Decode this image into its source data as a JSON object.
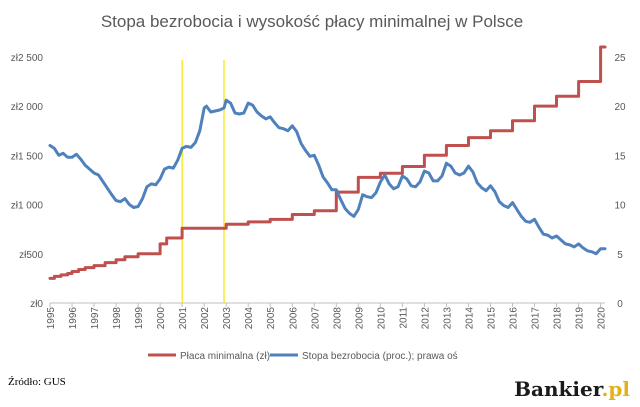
{
  "chart_data": {
    "type": "line",
    "title": "Stopa bezrobocia i wysokość płacy minimalnej w Polsce",
    "xlabel": "",
    "ylabel": "",
    "y2label": "",
    "x_ticks": [
      "1995",
      "1996",
      "1997",
      "1998",
      "1999",
      "2000",
      "2001",
      "2002",
      "2003",
      "2004",
      "2005",
      "2006",
      "2007",
      "2008",
      "2009",
      "2010",
      "2011",
      "2012",
      "2013",
      "2014",
      "2015",
      "2016",
      "2017",
      "2018",
      "2019",
      "2020"
    ],
    "y_left_ticks": [
      "zł0",
      "zł500",
      "zł1 000",
      "zł1 500",
      "zł2 000",
      "zł2 500"
    ],
    "y_right_ticks": [
      "0",
      "5",
      "10",
      "15",
      "20",
      "25"
    ],
    "ylim_left": [
      0,
      2600
    ],
    "ylim_right": [
      0,
      26
    ],
    "xlim": [
      1995,
      2020.2
    ],
    "grid": false,
    "legend_position": "bottom",
    "vertical_markers": [
      2001.0,
      2002.9
    ],
    "series": [
      {
        "name": "Płaca minimalna (zł)",
        "axis": "left",
        "color": "#c0504d",
        "step": true,
        "points": [
          [
            1995.0,
            250
          ],
          [
            1995.2,
            270
          ],
          [
            1995.5,
            285
          ],
          [
            1995.8,
            300
          ],
          [
            1996.0,
            320
          ],
          [
            1996.3,
            340
          ],
          [
            1996.6,
            360
          ],
          [
            1997.0,
            380
          ],
          [
            1997.5,
            410
          ],
          [
            1998.0,
            440
          ],
          [
            1998.4,
            470
          ],
          [
            1999.0,
            500
          ],
          [
            2000.0,
            600
          ],
          [
            2000.3,
            660
          ],
          [
            2001.0,
            760
          ],
          [
            2003.0,
            800
          ],
          [
            2004.0,
            824
          ],
          [
            2005.0,
            849
          ],
          [
            2006.0,
            899
          ],
          [
            2007.0,
            936
          ],
          [
            2008.0,
            1126
          ],
          [
            2009.0,
            1276
          ],
          [
            2010.0,
            1317
          ],
          [
            2011.0,
            1386
          ],
          [
            2012.0,
            1500
          ],
          [
            2013.0,
            1600
          ],
          [
            2014.0,
            1680
          ],
          [
            2015.0,
            1750
          ],
          [
            2016.0,
            1850
          ],
          [
            2017.0,
            2000
          ],
          [
            2018.0,
            2100
          ],
          [
            2019.0,
            2250
          ],
          [
            2019.95,
            2250
          ],
          [
            2020.0,
            2600
          ],
          [
            2020.2,
            2600
          ]
        ]
      },
      {
        "name": "Stopa bezrobocia (proc.); prawa oś",
        "axis": "right",
        "color": "#4f81bd",
        "step": false,
        "points": [
          [
            1995.0,
            16.0
          ],
          [
            1995.2,
            15.7
          ],
          [
            1995.4,
            15.0
          ],
          [
            1995.6,
            15.2
          ],
          [
            1995.8,
            14.8
          ],
          [
            1996.0,
            14.8
          ],
          [
            1996.2,
            15.1
          ],
          [
            1996.4,
            14.6
          ],
          [
            1996.6,
            14.0
          ],
          [
            1996.8,
            13.6
          ],
          [
            1997.0,
            13.2
          ],
          [
            1997.2,
            13.0
          ],
          [
            1997.5,
            12.0
          ],
          [
            1997.8,
            11.0
          ],
          [
            1998.0,
            10.4
          ],
          [
            1998.2,
            10.3
          ],
          [
            1998.4,
            10.6
          ],
          [
            1998.6,
            10.0
          ],
          [
            1998.8,
            9.7
          ],
          [
            1999.0,
            9.8
          ],
          [
            1999.2,
            10.6
          ],
          [
            1999.4,
            11.8
          ],
          [
            1999.6,
            12.1
          ],
          [
            1999.8,
            12.0
          ],
          [
            2000.0,
            12.6
          ],
          [
            2000.2,
            13.6
          ],
          [
            2000.4,
            13.8
          ],
          [
            2000.6,
            13.7
          ],
          [
            2000.8,
            14.5
          ],
          [
            2001.0,
            15.7
          ],
          [
            2001.2,
            15.9
          ],
          [
            2001.4,
            15.8
          ],
          [
            2001.6,
            16.3
          ],
          [
            2001.8,
            17.5
          ],
          [
            2002.0,
            19.8
          ],
          [
            2002.1,
            20.0
          ],
          [
            2002.3,
            19.4
          ],
          [
            2002.5,
            19.5
          ],
          [
            2002.7,
            19.6
          ],
          [
            2002.9,
            19.8
          ],
          [
            2003.0,
            20.6
          ],
          [
            2003.2,
            20.3
          ],
          [
            2003.4,
            19.3
          ],
          [
            2003.6,
            19.2
          ],
          [
            2003.8,
            19.3
          ],
          [
            2004.0,
            20.3
          ],
          [
            2004.2,
            20.1
          ],
          [
            2004.4,
            19.4
          ],
          [
            2004.6,
            19.0
          ],
          [
            2004.8,
            18.7
          ],
          [
            2005.0,
            18.9
          ],
          [
            2005.2,
            18.3
          ],
          [
            2005.4,
            17.8
          ],
          [
            2005.6,
            17.7
          ],
          [
            2005.8,
            17.5
          ],
          [
            2006.0,
            18.0
          ],
          [
            2006.2,
            17.4
          ],
          [
            2006.4,
            16.2
          ],
          [
            2006.6,
            15.5
          ],
          [
            2006.8,
            14.9
          ],
          [
            2007.0,
            15.0
          ],
          [
            2007.2,
            14.0
          ],
          [
            2007.4,
            12.8
          ],
          [
            2007.6,
            12.2
          ],
          [
            2007.8,
            11.5
          ],
          [
            2008.0,
            11.5
          ],
          [
            2008.2,
            10.5
          ],
          [
            2008.4,
            9.6
          ],
          [
            2008.6,
            9.1
          ],
          [
            2008.8,
            8.8
          ],
          [
            2009.0,
            9.5
          ],
          [
            2009.2,
            11.0
          ],
          [
            2009.4,
            10.8
          ],
          [
            2009.6,
            10.7
          ],
          [
            2009.8,
            11.2
          ],
          [
            2010.0,
            12.3
          ],
          [
            2010.2,
            13.0
          ],
          [
            2010.4,
            12.1
          ],
          [
            2010.6,
            11.6
          ],
          [
            2010.8,
            11.8
          ],
          [
            2011.0,
            12.9
          ],
          [
            2011.2,
            12.6
          ],
          [
            2011.4,
            11.9
          ],
          [
            2011.6,
            11.8
          ],
          [
            2011.8,
            12.3
          ],
          [
            2012.0,
            13.4
          ],
          [
            2012.2,
            13.2
          ],
          [
            2012.4,
            12.4
          ],
          [
            2012.6,
            12.4
          ],
          [
            2012.8,
            12.9
          ],
          [
            2013.0,
            14.2
          ],
          [
            2013.2,
            13.9
          ],
          [
            2013.4,
            13.2
          ],
          [
            2013.6,
            13.0
          ],
          [
            2013.8,
            13.2
          ],
          [
            2014.0,
            13.9
          ],
          [
            2014.2,
            13.3
          ],
          [
            2014.4,
            12.2
          ],
          [
            2014.6,
            11.7
          ],
          [
            2014.8,
            11.4
          ],
          [
            2015.0,
            11.9
          ],
          [
            2015.2,
            11.3
          ],
          [
            2015.4,
            10.3
          ],
          [
            2015.6,
            9.9
          ],
          [
            2015.8,
            9.7
          ],
          [
            2016.0,
            10.2
          ],
          [
            2016.2,
            9.5
          ],
          [
            2016.4,
            8.8
          ],
          [
            2016.6,
            8.3
          ],
          [
            2016.8,
            8.2
          ],
          [
            2017.0,
            8.5
          ],
          [
            2017.2,
            7.7
          ],
          [
            2017.4,
            7.0
          ],
          [
            2017.6,
            6.9
          ],
          [
            2017.8,
            6.6
          ],
          [
            2018.0,
            6.8
          ],
          [
            2018.2,
            6.4
          ],
          [
            2018.4,
            6.0
          ],
          [
            2018.6,
            5.9
          ],
          [
            2018.8,
            5.7
          ],
          [
            2019.0,
            6.0
          ],
          [
            2019.2,
            5.6
          ],
          [
            2019.4,
            5.3
          ],
          [
            2019.6,
            5.2
          ],
          [
            2019.8,
            5.0
          ],
          [
            2020.0,
            5.5
          ],
          [
            2020.2,
            5.5
          ]
        ]
      }
    ]
  },
  "source_label": "Źródło: GUS",
  "brand": {
    "name": "Bankier",
    "suffix": ".pl"
  }
}
